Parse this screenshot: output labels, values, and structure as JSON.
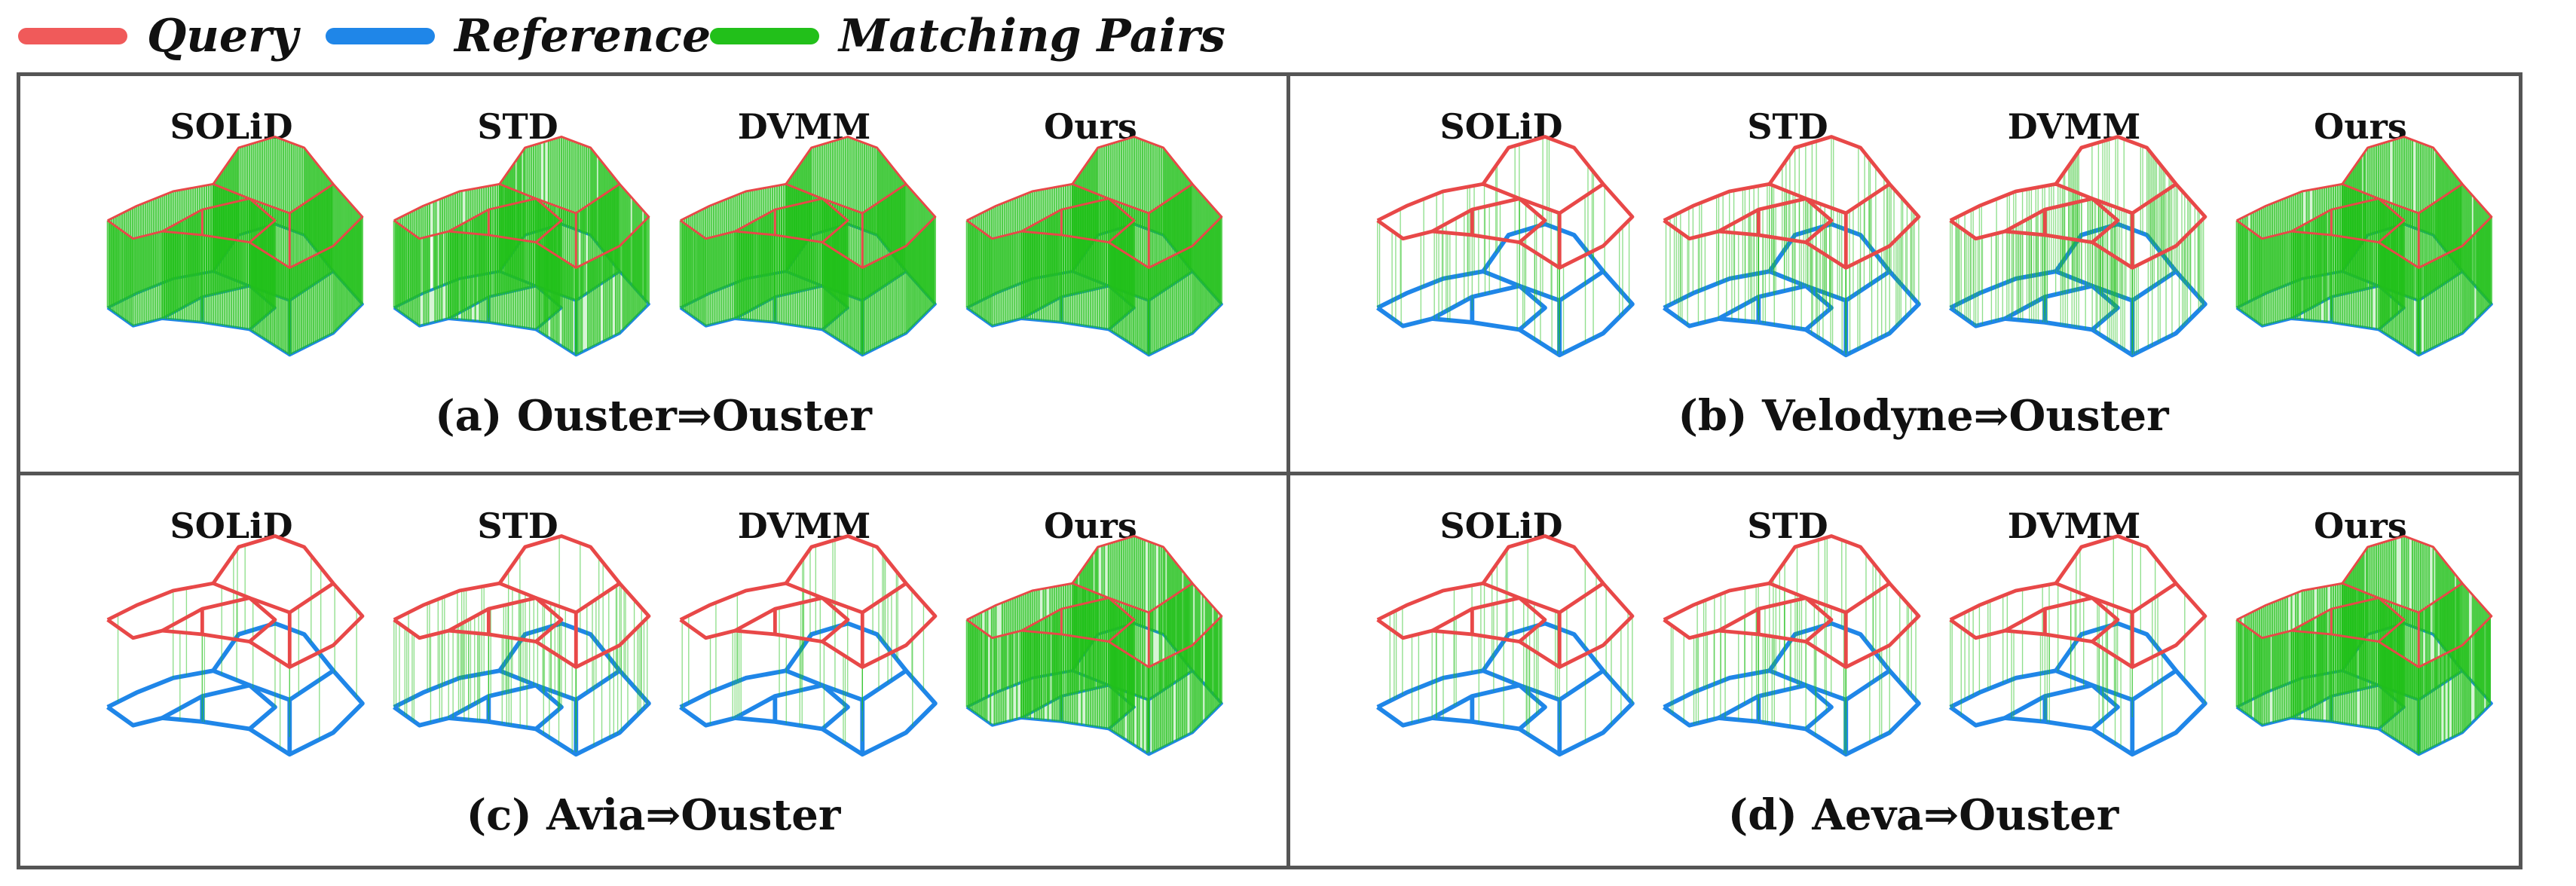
{
  "legend": {
    "items": [
      {
        "label": "Query",
        "color": "#f05a5a"
      },
      {
        "label": "Reference",
        "color": "#1f86e8"
      },
      {
        "label": "Matching Pairs",
        "color": "#22c01a"
      }
    ]
  },
  "colors": {
    "query": "#e84848",
    "reference": "#1f86e8",
    "match": "#22c01a",
    "frame": "#555555"
  },
  "panels": [
    {
      "caption": "(a)  Ouster⇒Ouster",
      "methods": [
        {
          "name": "SOLiD",
          "match_density": 1.0
        },
        {
          "name": "STD",
          "match_density": 0.9
        },
        {
          "name": "DVMM",
          "match_density": 1.0
        },
        {
          "name": "Ours",
          "match_density": 1.0
        }
      ]
    },
    {
      "caption": "(b)  Velodyne⇒Ouster",
      "methods": [
        {
          "name": "SOLiD",
          "match_density": 0.15
        },
        {
          "name": "STD",
          "match_density": 0.35
        },
        {
          "name": "DVMM",
          "match_density": 0.55
        },
        {
          "name": "Ours",
          "match_density": 0.95
        }
      ]
    },
    {
      "caption": "(c)  Avia⇒Ouster",
      "methods": [
        {
          "name": "SOLiD",
          "match_density": 0.08
        },
        {
          "name": "STD",
          "match_density": 0.25
        },
        {
          "name": "DVMM",
          "match_density": 0.1
        },
        {
          "name": "Ours",
          "match_density": 0.85
        }
      ]
    },
    {
      "caption": "(d)  Aeva⇒Ouster",
      "methods": [
        {
          "name": "SOLiD",
          "match_density": 0.1
        },
        {
          "name": "STD",
          "match_density": 0.2
        },
        {
          "name": "DVMM",
          "match_density": 0.15
        },
        {
          "name": "Ours",
          "match_density": 0.9
        }
      ]
    }
  ]
}
